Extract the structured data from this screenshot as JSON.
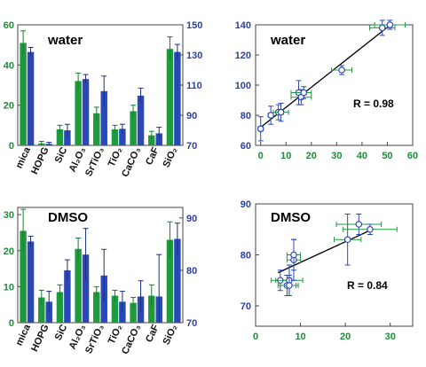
{
  "colors": {
    "green": "#1f9a3e",
    "blue": "#2b48b8",
    "green_text": "#1e8c3a",
    "blue_text": "#2a3fa6",
    "error_green": "#1b7a31",
    "error_blue": "#1d2f80"
  },
  "chart_data": [
    {
      "type": "bar",
      "title": "water",
      "categories": [
        "mica",
        "HOPG",
        "SiC",
        "Al₂O₃",
        "SrTiO₃",
        "TiO₂",
        "CaCO₃",
        "CaF",
        "SiO₂"
      ],
      "series": [
        {
          "values": [
            51,
            1,
            8,
            32,
            16,
            8,
            17,
            5,
            48
          ],
          "errors": [
            6,
            1,
            2,
            4,
            3,
            2,
            3,
            2,
            6
          ],
          "axis": "left"
        },
        {
          "values": [
            132,
            71,
            80,
            114,
            106,
            81,
            103,
            78,
            132
          ],
          "errors": [
            3,
            1,
            4,
            3,
            10,
            3,
            5,
            4,
            5
          ],
          "axis": "right"
        }
      ],
      "ylim_left": [
        0,
        60
      ],
      "yticks_left": [
        0,
        20,
        40,
        60
      ],
      "ylim_right": [
        70,
        150
      ],
      "yticks_right": [
        70,
        90,
        110,
        130,
        150
      ],
      "grid": false
    },
    {
      "type": "scatter",
      "title": "water",
      "annotation": "R = 0.98",
      "points": [
        {
          "x": 0,
          "y": 71,
          "xerr": 1,
          "yerr": 8
        },
        {
          "x": 4,
          "y": 80,
          "xerr": 1,
          "yerr": 6
        },
        {
          "x": 7,
          "y": 82,
          "xerr": 2,
          "yerr": 5
        },
        {
          "x": 8,
          "y": 82,
          "xerr": 3,
          "yerr": 6
        },
        {
          "x": 15,
          "y": 95,
          "xerr": 3,
          "yerr": 8
        },
        {
          "x": 16,
          "y": 92,
          "xerr": 4,
          "yerr": 5
        },
        {
          "x": 17,
          "y": 95,
          "xerr": 3,
          "yerr": 4
        },
        {
          "x": 32,
          "y": 110,
          "xerr": 4,
          "yerr": 3
        },
        {
          "x": 48,
          "y": 138,
          "xerr": 5,
          "yerr": 5
        },
        {
          "x": 51,
          "y": 140,
          "xerr": 6,
          "yerr": 3
        }
      ],
      "fit_line": [
        [
          0,
          72
        ],
        [
          52,
          141
        ]
      ],
      "xlim": [
        -2,
        60
      ],
      "ylim": [
        60,
        140
      ],
      "xticks": [
        0,
        10,
        20,
        30,
        40,
        50,
        60
      ],
      "yticks": [
        60,
        80,
        100,
        120,
        140
      ],
      "grid": false
    },
    {
      "type": "bar",
      "title": "DMSO",
      "categories": [
        "mica",
        "HOPG",
        "SiC",
        "Al₂O₃",
        "SrTiO₃",
        "TiO₂",
        "CaCO₃",
        "CaF",
        "SiO₂"
      ],
      "series": [
        {
          "values": [
            25.5,
            7,
            8.5,
            20.5,
            8.5,
            7.5,
            5.5,
            7.5,
            23
          ],
          "errors": [
            6,
            2,
            2,
            3,
            1.5,
            1.5,
            1.5,
            3,
            5
          ],
          "axis": "left"
        },
        {
          "values": [
            85.5,
            74,
            80,
            83,
            79,
            74,
            75,
            75,
            86
          ],
          "errors": [
            1,
            2,
            2,
            5,
            5,
            2,
            3,
            8,
            3
          ],
          "axis": "right"
        }
      ],
      "ylim_left": [
        0,
        32
      ],
      "yticks_left": [
        0,
        10,
        20,
        30
      ],
      "ylim_right": [
        70,
        92
      ],
      "yticks_right": [
        70,
        80,
        90
      ],
      "grid": false
    },
    {
      "type": "scatter",
      "title": "DMSO",
      "annotation": "R = 0.84",
      "points": [
        {
          "x": 5.5,
          "y": 75,
          "xerr": 2,
          "yerr": 2
        },
        {
          "x": 7,
          "y": 74,
          "xerr": 2,
          "yerr": 2
        },
        {
          "x": 7.5,
          "y": 75,
          "xerr": 3,
          "yerr": 3
        },
        {
          "x": 7.5,
          "y": 74,
          "xerr": 2,
          "yerr": 2
        },
        {
          "x": 8.5,
          "y": 79,
          "xerr": 1.5,
          "yerr": 4
        },
        {
          "x": 8.5,
          "y": 80,
          "xerr": 1.5,
          "yerr": 3
        },
        {
          "x": 20.5,
          "y": 83,
          "xerr": 3,
          "yerr": 5
        },
        {
          "x": 23,
          "y": 86,
          "xerr": 5,
          "yerr": 2
        },
        {
          "x": 25.5,
          "y": 85,
          "xerr": 6,
          "yerr": 1
        }
      ],
      "fit_line": [
        [
          5,
          76.5
        ],
        [
          26,
          85
        ]
      ],
      "xlim": [
        0,
        35
      ],
      "ylim": [
        66,
        90
      ],
      "xticks": [
        0,
        10,
        20,
        30
      ],
      "yticks": [
        70,
        80,
        90
      ],
      "grid": false
    }
  ]
}
